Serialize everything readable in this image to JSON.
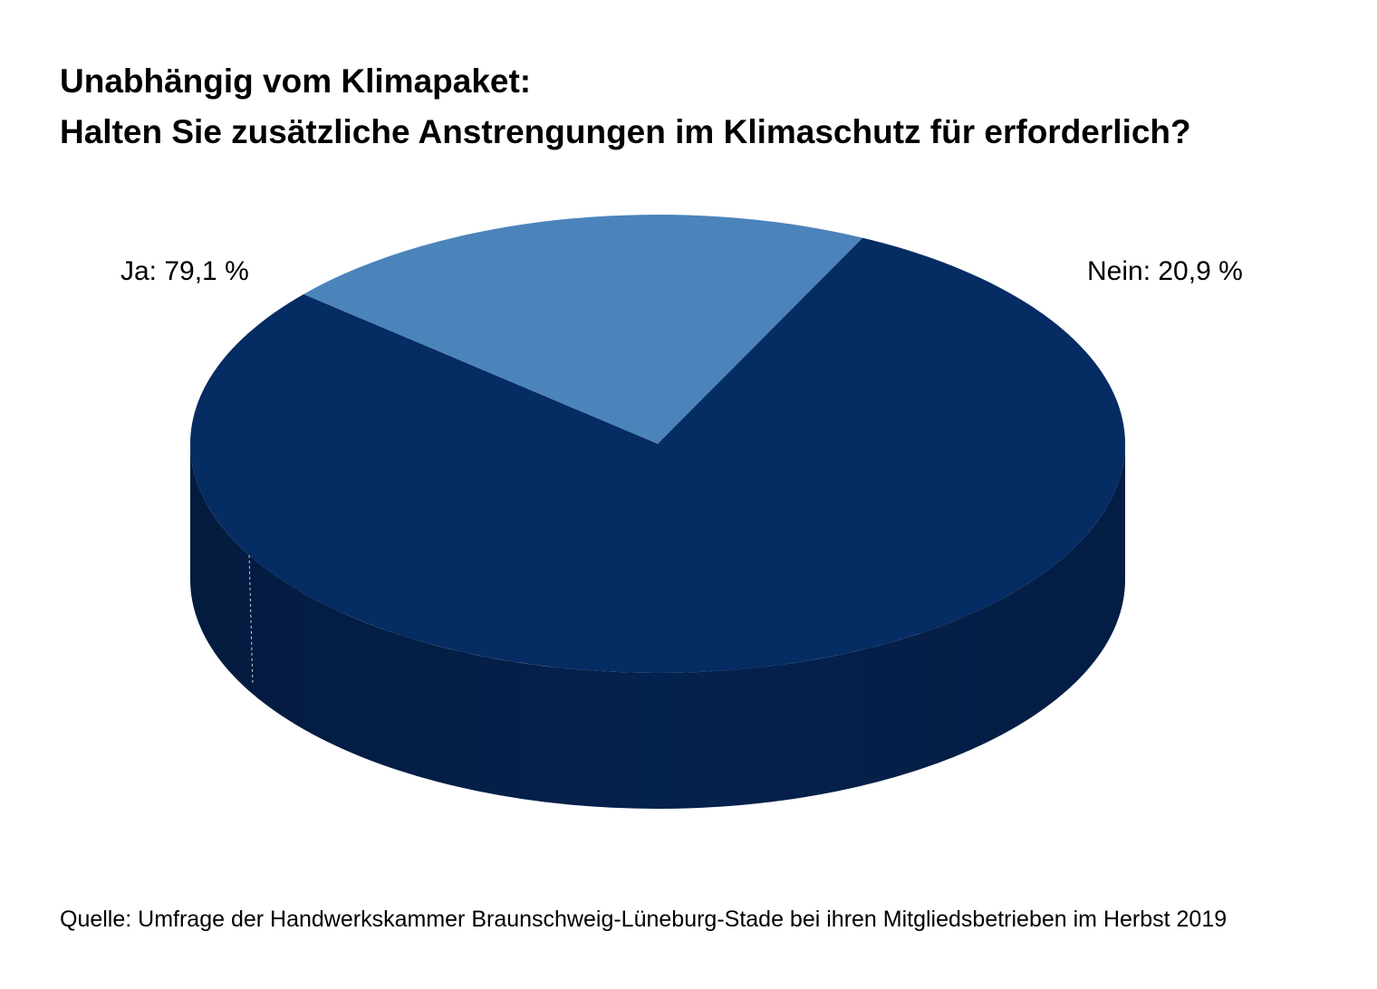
{
  "chart_data": {
    "type": "pie",
    "title_lines": [
      "Unabhängig vom Klimapaket:",
      "Halten Sie zusätzliche Anstrengungen im Klimaschutz für erforderlich?"
    ],
    "slices": [
      {
        "name": "Ja",
        "value": 79.1,
        "label": "Ja: 79,1 %",
        "color": "#052c63",
        "side_color": "#05214d"
      },
      {
        "name": "Nein",
        "value": 20.9,
        "label": "Nein: 20,9 %",
        "color": "#4b83bb",
        "side_color": "#3a6a9c"
      }
    ],
    "style": "3d",
    "legend": "none",
    "source": "Quelle: Umfrage der Handwerkskammer Braunschweig-Lüneburg-Stade bei ihren Mitgliedsbetrieben im Herbst 2019"
  }
}
